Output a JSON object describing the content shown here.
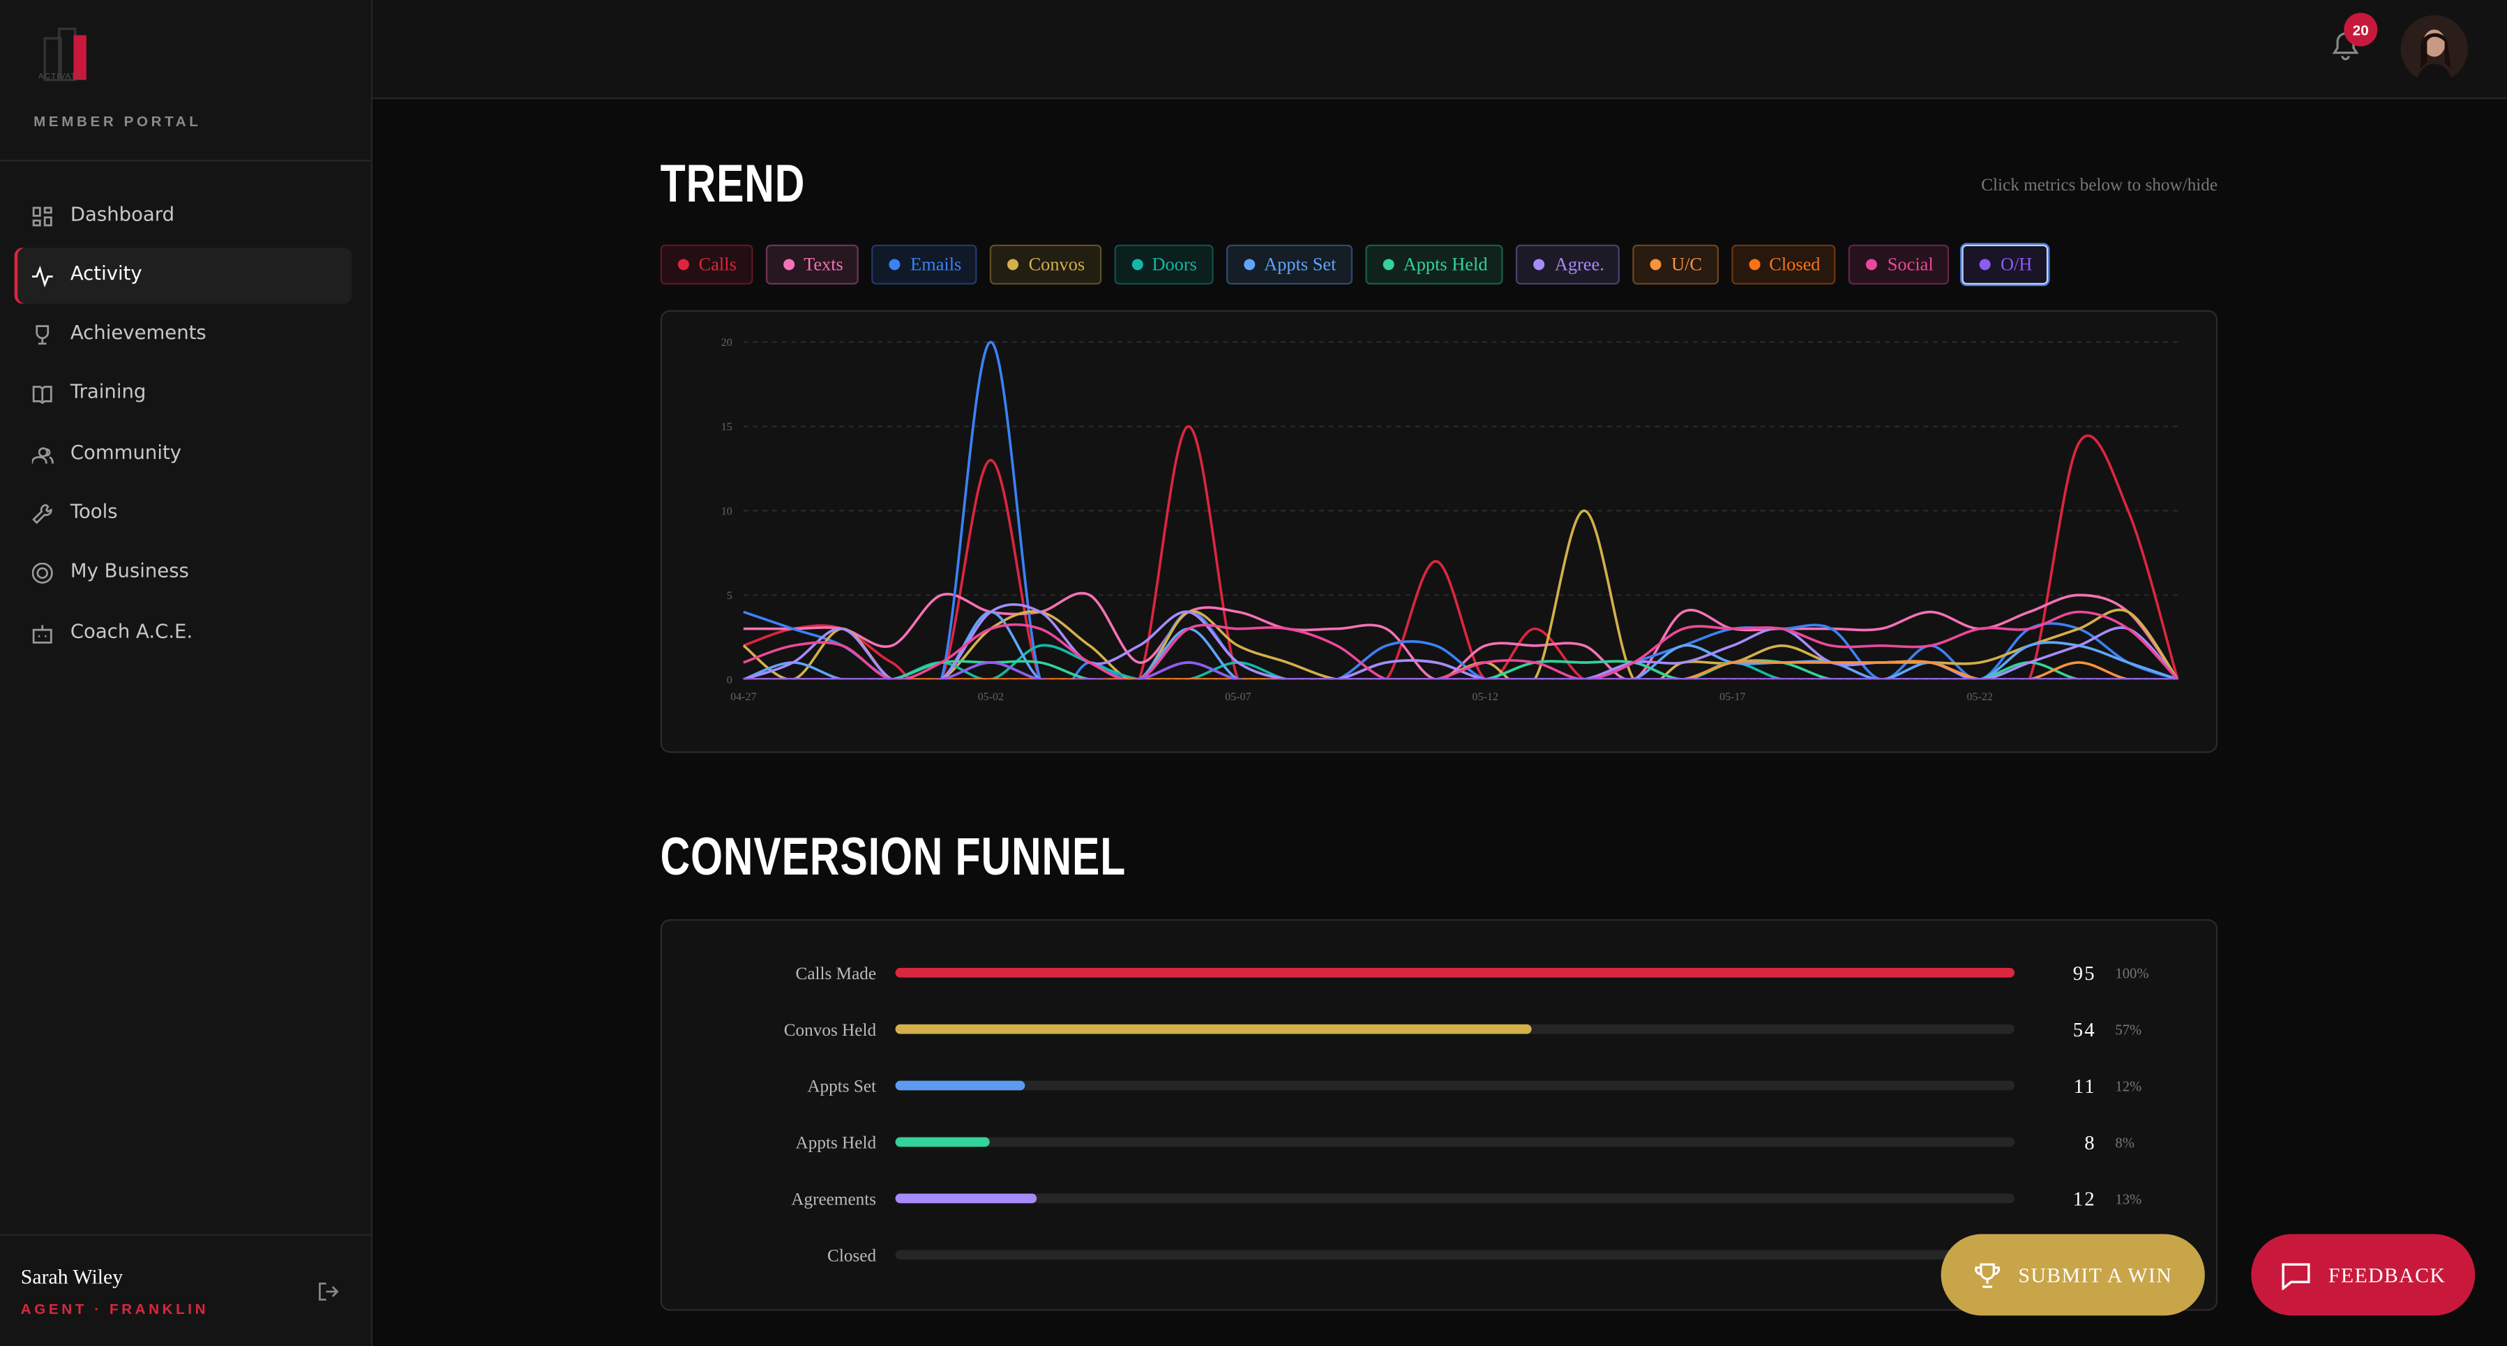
{
  "sidebar": {
    "logo": "ACTIVATE",
    "portal": "MEMBER PORTAL",
    "nav": [
      {
        "label": "Dashboard",
        "active": false
      },
      {
        "label": "Activity",
        "active": true
      },
      {
        "label": "Achievements",
        "active": false
      },
      {
        "label": "Training",
        "active": false
      },
      {
        "label": "Community",
        "active": false
      },
      {
        "label": "Tools",
        "active": false
      },
      {
        "label": "My Business",
        "active": false
      },
      {
        "label": "Coach A.C.E.",
        "active": false
      }
    ],
    "user": {
      "name": "Sarah Wiley",
      "role": "AGENT · FRANKLIN"
    }
  },
  "header": {
    "notifications": 20
  },
  "trend": {
    "title": "TREND",
    "hint": "Click metrics below to show/hide",
    "chart": {
      "type": "line",
      "grid": true,
      "ylim": [
        0,
        20
      ],
      "yticks": [
        0,
        5,
        10,
        15,
        20
      ],
      "x": [
        "04-27",
        null,
        null,
        null,
        null,
        "05-02",
        null,
        null,
        null,
        null,
        "05-07",
        null,
        null,
        null,
        null,
        "05-12",
        null,
        null,
        null,
        null,
        "05-17",
        null,
        null,
        null,
        null,
        "05-22",
        null,
        null,
        null,
        null
      ],
      "series": [
        {
          "name": "Calls",
          "color": "#dc2640",
          "values": [
            2,
            3,
            3,
            1,
            0,
            13,
            0,
            0,
            0,
            15,
            0,
            0,
            0,
            0,
            7,
            0,
            3,
            0,
            0,
            0,
            0,
            0,
            0,
            0,
            0,
            0,
            0,
            14,
            10,
            0
          ]
        },
        {
          "name": "Texts",
          "color": "#f472b6",
          "values": [
            3,
            3,
            3,
            2,
            5,
            4,
            4,
            5,
            1,
            4,
            4,
            3,
            3,
            3,
            0,
            2,
            2,
            2,
            0,
            4,
            3,
            3,
            3,
            3,
            4,
            3,
            4,
            5,
            4,
            0
          ]
        },
        {
          "name": "Emails",
          "color": "#3b82f6",
          "values": [
            4,
            3,
            2,
            0,
            0,
            20,
            0,
            1,
            0,
            4,
            1,
            0,
            0,
            2,
            2,
            0,
            0,
            0,
            1,
            2,
            3,
            3,
            3,
            0,
            2,
            0,
            3,
            3,
            1,
            0
          ]
        },
        {
          "name": "Convos",
          "color": "#d4b04a",
          "values": [
            2,
            0,
            3,
            0,
            0,
            3,
            4,
            2,
            0,
            4,
            2,
            1,
            0,
            0,
            0,
            1,
            0,
            10,
            0,
            1,
            1,
            2,
            1,
            1,
            1,
            1,
            2,
            3,
            4,
            0
          ]
        },
        {
          "name": "Doors",
          "color": "#14b8a6",
          "values": [
            0,
            0,
            0,
            0,
            1,
            0,
            2,
            1,
            0,
            0,
            1,
            0,
            0,
            0,
            0,
            0,
            1,
            1,
            1,
            0,
            1,
            0,
            0,
            0,
            0,
            0,
            0,
            0,
            0,
            0
          ]
        },
        {
          "name": "Appts Set",
          "color": "#60a5fa",
          "values": [
            0,
            1,
            0,
            0,
            0,
            4,
            0,
            0,
            0,
            3,
            0,
            0,
            0,
            1,
            1,
            0,
            0,
            0,
            0,
            2,
            1,
            1,
            1,
            0,
            1,
            0,
            2,
            2,
            1,
            0
          ]
        },
        {
          "name": "Appts Held",
          "color": "#34d399",
          "values": [
            0,
            0,
            0,
            0,
            1,
            1,
            1,
            0,
            0,
            0,
            0,
            0,
            0,
            0,
            0,
            0,
            1,
            1,
            1,
            0,
            1,
            1,
            0,
            0,
            0,
            0,
            1,
            0,
            0,
            0
          ]
        },
        {
          "name": "Agree.",
          "color": "#a78bfa",
          "values": [
            0,
            1,
            3,
            0,
            0,
            4,
            4,
            1,
            2,
            4,
            1,
            0,
            0,
            1,
            1,
            0,
            0,
            0,
            1,
            1,
            2,
            3,
            1,
            1,
            1,
            0,
            1,
            2,
            3,
            0
          ]
        },
        {
          "name": "U/C",
          "color": "#fb923c",
          "values": [
            0,
            0,
            0,
            0,
            0,
            1,
            0,
            0,
            0,
            1,
            0,
            0,
            0,
            0,
            0,
            0,
            0,
            0,
            0,
            0,
            1,
            1,
            1,
            1,
            1,
            0,
            0,
            1,
            0,
            0
          ]
        },
        {
          "name": "Closed",
          "color": "#f97316",
          "values": [
            0,
            0,
            0,
            0,
            0,
            0,
            0,
            0,
            0,
            0,
            0,
            0,
            0,
            0,
            0,
            0,
            0,
            0,
            0,
            0,
            0,
            0,
            0,
            0,
            0,
            0,
            0,
            0,
            0,
            0
          ]
        },
        {
          "name": "Social",
          "color": "#ec4899",
          "values": [
            1,
            2,
            2,
            0,
            1,
            3,
            3,
            1,
            0,
            3,
            3,
            3,
            2,
            0,
            0,
            1,
            1,
            0,
            1,
            3,
            3,
            3,
            2,
            2,
            2,
            3,
            3,
            4,
            3,
            0
          ]
        },
        {
          "name": "O/H",
          "color": "#8b5cf6",
          "selected": true,
          "values": [
            0,
            0,
            0,
            0,
            0,
            1,
            0,
            0,
            0,
            1,
            0,
            0,
            0,
            0,
            0,
            0,
            0,
            0,
            0,
            0,
            0,
            0,
            0,
            0,
            0,
            0,
            0,
            0,
            0,
            0
          ]
        }
      ]
    }
  },
  "funnel": {
    "title": "CONVERSION FUNNEL",
    "chart": {
      "type": "bar",
      "xlim": [
        0,
        95
      ],
      "categories": [
        "Calls Made",
        "Convos Held",
        "Appts Set",
        "Appts Held",
        "Agreements",
        "Closed"
      ],
      "values": [
        95,
        54,
        11,
        8,
        12,
        null
      ],
      "shares": [
        "100%",
        "57%",
        "12%",
        "8%",
        "13%",
        null
      ],
      "colors": [
        "#dc2640",
        "#d4b04a",
        "#5b9cf0",
        "#34d399",
        "#a78bfa",
        "#f97316"
      ]
    }
  },
  "actions": {
    "submit": "SUBMIT A WIN",
    "feedback": "FEEDBACK"
  }
}
